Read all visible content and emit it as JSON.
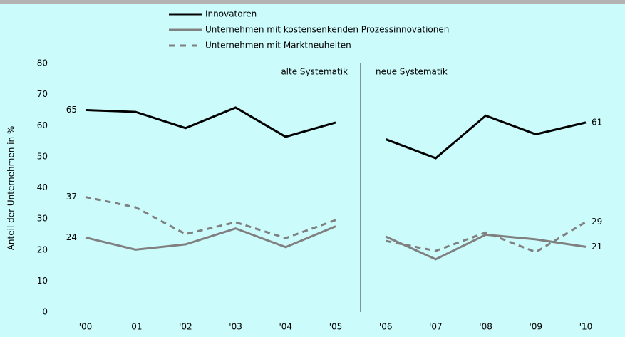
{
  "chart_data": {
    "type": "line",
    "y_label": "Anteil der Unternehmen in %",
    "categories": [
      "'00",
      "'01",
      "'02",
      "'03",
      "'04",
      "'05",
      "'06",
      "'07",
      "'08",
      "'09",
      "'10"
    ],
    "break_between": [
      "'05",
      "'06"
    ],
    "annotations": [
      "alte Systematik",
      "neue Systematik"
    ],
    "series": [
      {
        "name": "Innovatoren",
        "color": "#000000",
        "dash": false,
        "values": [
          65,
          64.4,
          59.2,
          65.8,
          56.4,
          61,
          55.6,
          49.5,
          63.2,
          57.2,
          61
        ],
        "value_labels": [
          "65",
          null,
          null,
          null,
          null,
          null,
          null,
          null,
          null,
          null,
          "61"
        ]
      },
      {
        "name": "Unternehmen mit kostensenkenden Prozessinnovationen",
        "color": "#808080",
        "dash": false,
        "values": [
          24,
          20.1,
          21.8,
          26.9,
          20.9,
          27.6,
          24.3,
          17,
          24.9,
          23.4,
          21
        ],
        "value_labels": [
          "24",
          null,
          null,
          null,
          null,
          null,
          null,
          null,
          null,
          null,
          "21"
        ]
      },
      {
        "name": "Unternehmen mit Marktneuheiten",
        "color": "#808080",
        "dash": true,
        "values": [
          37,
          33.7,
          25.1,
          28.9,
          23.8,
          29.6,
          22.9,
          19.7,
          25.6,
          19.3,
          29
        ],
        "value_labels": [
          "37",
          null,
          null,
          null,
          null,
          null,
          null,
          null,
          null,
          null,
          "29"
        ]
      }
    ],
    "ylim": [
      0,
      80
    ],
    "yticks": [
      0,
      10,
      20,
      30,
      40,
      50,
      60,
      70,
      80
    ]
  }
}
